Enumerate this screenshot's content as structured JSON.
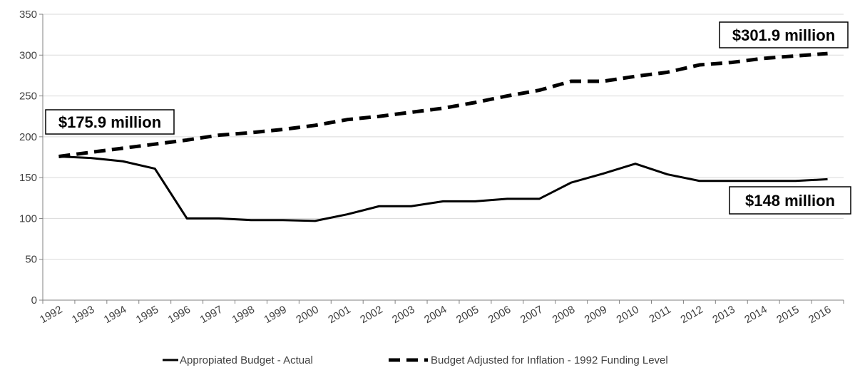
{
  "chart_data": {
    "type": "line",
    "title": "",
    "xlabel": "",
    "ylabel": "",
    "x": [
      "1992",
      "1993",
      "1994",
      "1995",
      "1996",
      "1997",
      "1998",
      "1999",
      "2000",
      "2001",
      "2002",
      "2003",
      "2004",
      "2005",
      "2006",
      "2007",
      "2008",
      "2009",
      "2010",
      "2011",
      "2012",
      "2013",
      "2014",
      "2015",
      "2016"
    ],
    "ylim": [
      0,
      350
    ],
    "yticks": [
      0,
      50,
      100,
      150,
      200,
      250,
      300,
      350
    ],
    "ytick_labels": [
      "0",
      "50",
      "100",
      "150",
      "200",
      "250",
      "300",
      "350"
    ],
    "grid": "horizontal",
    "legend_position": "bottom",
    "series": [
      {
        "name": "Appropiated Budget - Actual",
        "style": "solid",
        "color": "#000000",
        "values": [
          175.9,
          174,
          170,
          161,
          100,
          100,
          98,
          98,
          97,
          105,
          115,
          115,
          121,
          121,
          124,
          124,
          144,
          155,
          167,
          154,
          146,
          146,
          146,
          146,
          148
        ]
      },
      {
        "name": "Budget Adjusted for Inflation - 1992 Funding Level",
        "style": "dashed",
        "color": "#000000",
        "values": [
          175.9,
          181,
          186,
          191,
          196,
          202,
          205,
          209,
          214,
          221,
          225,
          230,
          235,
          242,
          250,
          257,
          268,
          268,
          274,
          279,
          288,
          291,
          296,
          299,
          301.9
        ]
      }
    ],
    "annotations": [
      {
        "text": "$175.9 million",
        "series": 1,
        "index": 0
      },
      {
        "text": "$301.9 million",
        "series": 1,
        "index": 24
      },
      {
        "text": "$148 million",
        "series": 0,
        "index": 24
      }
    ]
  },
  "colors": {
    "gridline": "#d9d9d9",
    "axis": "#808080",
    "line": "#000000",
    "label_text": "#404040"
  }
}
